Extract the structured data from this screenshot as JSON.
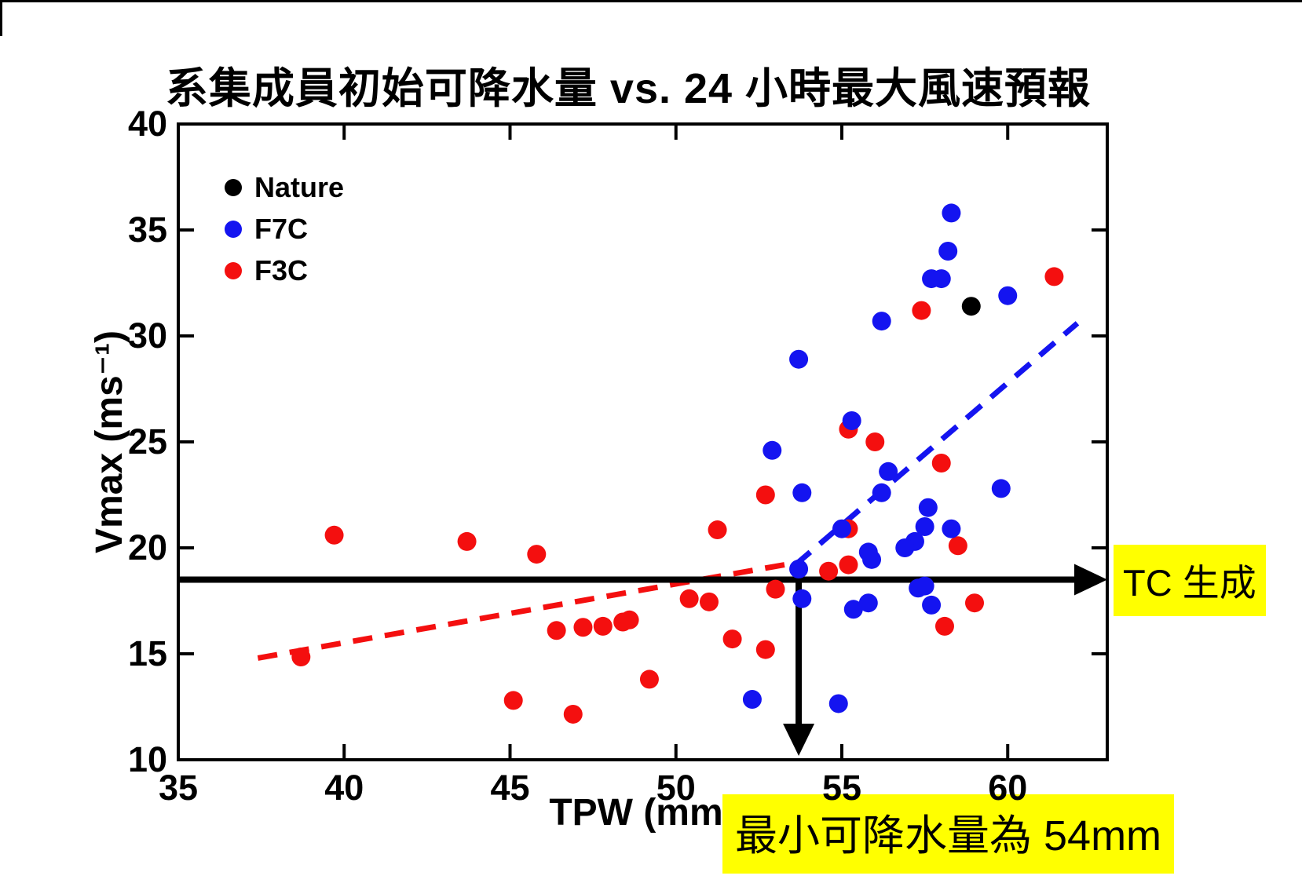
{
  "page": {
    "background": "#ffffff"
  },
  "title": "系集成員初始可降水量 vs. 24 小時最大風速預報",
  "colors": {
    "nature": "#000000",
    "f7c": "#1414f0",
    "f3c": "#f40f0f",
    "highlight": "#ffff00",
    "axis": "#000000"
  },
  "legend": {
    "items": [
      {
        "label": "Nature",
        "color": "#000000"
      },
      {
        "label": "F7C",
        "color": "#1414f0"
      },
      {
        "label": "F3C",
        "color": "#f40f0f"
      }
    ]
  },
  "annotations": {
    "tc_label": {
      "text": "TC 生成",
      "bg": "#ffff00"
    },
    "min_tpw_label": {
      "text": "最小可降水量為 54mm",
      "bg": "#ffff00"
    }
  },
  "chart_data": {
    "type": "scatter",
    "title": "系集成員初始可降水量 vs. 24 小時最大風速預報",
    "xlabel": "TPW (mm)",
    "ylabel": "Vmax (ms⁻¹)",
    "xlim": [
      35,
      63
    ],
    "ylim": [
      10,
      40
    ],
    "x_ticks": [
      35,
      40,
      45,
      50,
      55,
      60
    ],
    "y_ticks": [
      10,
      15,
      20,
      25,
      30,
      35,
      40
    ],
    "grid": false,
    "legend_position": "upper-left-inside",
    "series": [
      {
        "name": "Nature",
        "color": "#000000",
        "points": [
          [
            58.9,
            31.4
          ]
        ]
      },
      {
        "name": "F7C",
        "color": "#1414f0",
        "points": [
          [
            58.3,
            35.8
          ],
          [
            58.2,
            34.0
          ],
          [
            57.7,
            32.7
          ],
          [
            58.0,
            32.7
          ],
          [
            60.0,
            31.9
          ],
          [
            56.2,
            30.7
          ],
          [
            53.7,
            28.9
          ],
          [
            55.3,
            26.0
          ],
          [
            52.9,
            24.6
          ],
          [
            56.4,
            23.6
          ],
          [
            59.8,
            22.8
          ],
          [
            53.8,
            22.6
          ],
          [
            56.2,
            22.6
          ],
          [
            57.6,
            21.9
          ],
          [
            57.5,
            21.0
          ],
          [
            58.3,
            20.9
          ],
          [
            55.0,
            20.9
          ],
          [
            57.2,
            20.3
          ],
          [
            56.9,
            20.0
          ],
          [
            55.8,
            19.8
          ],
          [
            55.9,
            19.45
          ],
          [
            53.7,
            19.0
          ],
          [
            53.8,
            17.6
          ],
          [
            55.8,
            17.4
          ],
          [
            55.35,
            17.1
          ],
          [
            57.3,
            18.1
          ],
          [
            57.5,
            18.2
          ],
          [
            57.7,
            17.3
          ],
          [
            52.3,
            12.85
          ],
          [
            54.9,
            12.65
          ]
        ]
      },
      {
        "name": "F3C",
        "color": "#f40f0f",
        "points": [
          [
            39.7,
            20.6
          ],
          [
            43.7,
            20.3
          ],
          [
            45.8,
            19.7
          ],
          [
            38.7,
            14.85
          ],
          [
            45.1,
            12.8
          ],
          [
            46.9,
            12.15
          ],
          [
            46.4,
            16.1
          ],
          [
            47.2,
            16.25
          ],
          [
            47.8,
            16.3
          ],
          [
            48.4,
            16.5
          ],
          [
            48.6,
            16.6
          ],
          [
            49.2,
            13.8
          ],
          [
            50.4,
            17.6
          ],
          [
            51.0,
            17.45
          ],
          [
            51.7,
            15.7
          ],
          [
            52.7,
            15.2
          ],
          [
            51.25,
            20.85
          ],
          [
            52.7,
            22.5
          ],
          [
            53.0,
            18.05
          ],
          [
            54.6,
            18.9
          ],
          [
            55.2,
            19.2
          ],
          [
            55.2,
            20.9
          ],
          [
            55.2,
            25.6
          ],
          [
            56.0,
            25.0
          ],
          [
            57.4,
            31.2
          ],
          [
            58.0,
            24.0
          ],
          [
            58.5,
            20.1
          ],
          [
            59.0,
            17.4
          ],
          [
            58.1,
            16.3
          ],
          [
            61.4,
            32.8
          ]
        ]
      }
    ],
    "trend_lines": [
      {
        "series": "F3C",
        "color": "#f40f0f",
        "style": "dashed",
        "from": [
          37.4,
          14.8
        ],
        "to": [
          53.8,
          19.35
        ]
      },
      {
        "series": "F7C",
        "color": "#1414f0",
        "style": "dashed",
        "from": [
          53.6,
          19.2
        ],
        "to": [
          62.1,
          30.6
        ]
      }
    ],
    "threshold_line": {
      "y": 18.5,
      "label": "TC 生成",
      "arrow": "right"
    },
    "min_tpw_arrow": {
      "x": 53.7,
      "label": "最小可降水量為 54mm",
      "arrow": "down"
    }
  }
}
